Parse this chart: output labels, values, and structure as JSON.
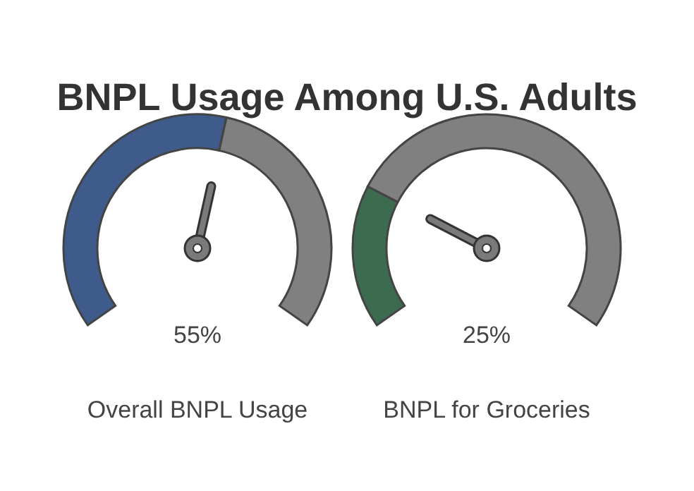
{
  "chart_data": [
    {
      "type": "donut",
      "title": "BNPL Usage Among U.S. Adults",
      "xlabel": "Overall BNPL Usage",
      "categories": [
        null,
        null
      ],
      "values": [
        55,
        45
      ],
      "colors": [
        "#3f5b8c",
        "#808080"
      ],
      "annotations": [
        "55%"
      ]
    },
    {
      "type": "donut",
      "xlabel": "BNPL for Groceries",
      "categories": [
        null,
        null
      ],
      "values": [
        25,
        75
      ],
      "colors": [
        "#3d6b4f",
        "#808080"
      ],
      "annotations": [
        "25%"
      ]
    }
  ]
}
